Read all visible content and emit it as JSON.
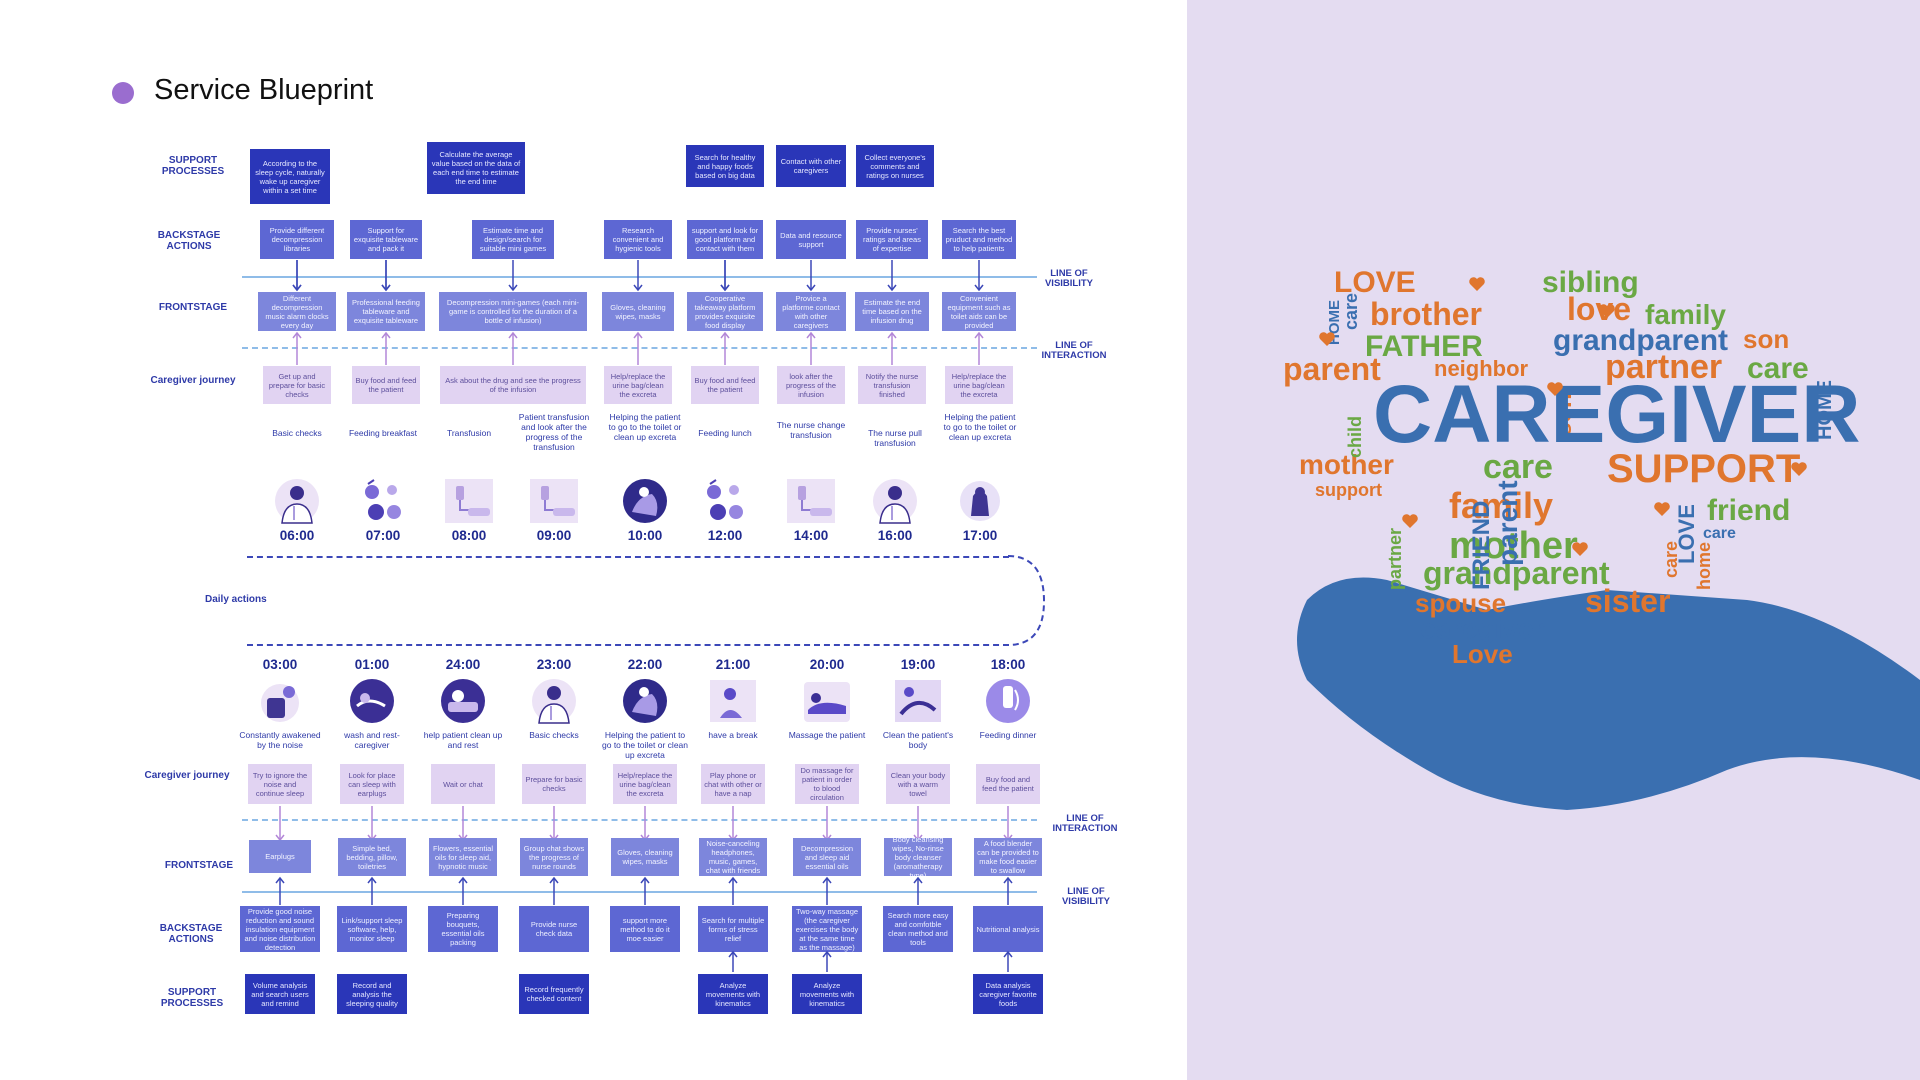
{
  "title": "Service Blueprint",
  "row_labels": {
    "support_processes": "SUPPORT PROCESSES",
    "backstage_actions": "BACKSTAGE ACTIONS",
    "frontstage": "FRONTSTAGE",
    "caregiver_journey": "Caregiver journey",
    "line_of_visibility": "LINE OF VISIBILITY",
    "line_of_interaction": "LINE OF INTERACTION",
    "daily_actions": "Daily actions"
  },
  "top": {
    "support": [
      {
        "col": 0,
        "text": "According to the sleep cycle, naturally wake up caregiver within a set time"
      },
      {
        "col": 2,
        "text": "Calculate the average value based on the data of each end time to estimate the end time"
      },
      {
        "col": 5,
        "text": "Search for healthy and happy foods based on big data"
      },
      {
        "col": 6,
        "text": "Contact with other caregivers"
      },
      {
        "col": 7,
        "text": "Collect everyone's comments and ratings on nurses"
      }
    ],
    "backstage": [
      {
        "col": 0,
        "text": "Provide different decompression libraries"
      },
      {
        "col": 1,
        "text": "Support for exquisite tableware and pack it"
      },
      {
        "col": 2,
        "text": "Estimate time and design/search for suitable mini games"
      },
      {
        "col": 4,
        "text": "Research convenient and hygienic tools"
      },
      {
        "col": 5,
        "text": "support and look for good platform and contact with them"
      },
      {
        "col": 6,
        "text": "Data and resource support"
      },
      {
        "col": 7,
        "text": "Provide nurses' ratings and areas of expertise"
      },
      {
        "col": 8,
        "text": "Search the best pruduct and method to help patients"
      }
    ],
    "frontstage": [
      {
        "col": 0,
        "text": "Different decompression music alarm clocks every day"
      },
      {
        "col": 1,
        "text": "Professional feeding tableware and exquisite tableware"
      },
      {
        "col": 2,
        "text": "Decompression mini-games (each mini-game is controlled for the duration of a bottle of infusion)"
      },
      {
        "col": 4,
        "text": "Gloves, cleaning wipes, masks"
      },
      {
        "col": 5,
        "text": "Cooperative takeaway platform provides exquisite food display"
      },
      {
        "col": 6,
        "text": "Provice a platforme contact with other caregivers"
      },
      {
        "col": 7,
        "text": "Estimate the end time based on the infusion drug"
      },
      {
        "col": 8,
        "text": "Convenient equipment such as toilet aids can be provided"
      }
    ],
    "journey": [
      {
        "col": 0,
        "text": "Get up and prepare for basic checks"
      },
      {
        "col": 1,
        "text": "Buy food and feed the patient"
      },
      {
        "col": 2,
        "text": "Ask about the drug and see the progress of the infusion"
      },
      {
        "col": 4,
        "text": "Help/replace the urine bag/clean the excreta"
      },
      {
        "col": 5,
        "text": "Buy food and feed the patient"
      },
      {
        "col": 6,
        "text": "look after the progress of the infusion"
      },
      {
        "col": 7,
        "text": "Notify the nurse transfusion finished"
      },
      {
        "col": 8,
        "text": "Help/replace the urine bag/clean the excreta"
      }
    ],
    "captions": [
      "Basic checks",
      "Feeding breakfast",
      "Transfusion",
      "Patient transfusion and look after the progress of the transfusion",
      "Helping the patient to go to the toilet or clean up excreta",
      "Feeding lunch",
      "The nurse change transfusion",
      "The nurse pull transfusion",
      "Helping the patient to go to the toilet or clean up excreta"
    ],
    "times": [
      "06:00",
      "07:00",
      "08:00",
      "09:00",
      "10:00",
      "12:00",
      "14:00",
      "16:00",
      "17:00"
    ]
  },
  "bottom": {
    "times": [
      "03:00",
      "01:00",
      "24:00",
      "23:00",
      "22:00",
      "21:00",
      "20:00",
      "19:00",
      "18:00"
    ],
    "captions": [
      "Constantly awakened by the noise",
      "wash and rest-caregiver",
      "help patient clean up and rest",
      "Basic checks",
      "Helping the patient to go to the toilet or clean up excreta",
      "have a break",
      "Massage the patient",
      "Clean the patient's body",
      "Feeding dinner"
    ],
    "journey": [
      "Try to ignore the noise and continue sleep",
      "Look for place can sleep with earplugs",
      "Wait or chat",
      "Prepare for basic checks",
      "Help/replace the urine bag/clean the excreta",
      "Play phone or chat with other or have a nap",
      "Do massage for patient in order to blood circulation",
      "Clean your body with a warm towel",
      "Buy food and feed the patient"
    ],
    "frontstage": [
      "Earplugs",
      "Simple bed, bedding, pillow, toiletries",
      "Flowers, essential oils for sleep aid, hypnotic music",
      "Group chat shows the progress of nurse rounds",
      "Gloves, cleaning wipes, masks",
      "Noise-canceling headphones, music, games, chat with friends",
      "Decompression and sleep aid essential oils",
      "Body cleansing wipes, No-rinse body cleanser (aromatherapy type)",
      "A food blender can be provided to make food easier to swallow"
    ],
    "backstage": [
      "Provide good noise reduction and sound insulation equipment and noise distribution detection",
      "Link/support sleep software, help, monitor sleep",
      "Preparing bouquets, essential oils packing",
      "Provide nurse check data",
      "support more method to do it moe easier",
      "Search for multiple forms of stress relief",
      "Two-way massage (the caregiver exercises the body at the same time as the massage)",
      "Search more easy and comfotble clean method and tools",
      "Nutritional analysis"
    ],
    "support": [
      {
        "col": 0,
        "text": "Volume analysis and search users and remind"
      },
      {
        "col": 1,
        "text": "Record and analysis the sleeping quality"
      },
      {
        "col": 3,
        "text": "Record frequently checked content"
      },
      {
        "col": 5,
        "text": "Analyze movements with kinematics"
      },
      {
        "col": 6,
        "text": "Analyze movements with kinematics"
      },
      {
        "col": 8,
        "text": "Data analysis caregiver favorite foods"
      }
    ]
  },
  "illustrations": [
    "nurse-icon",
    "food-icon",
    "infusion-icon",
    "infusion-icon",
    "bed-icon",
    "food-icon",
    "infusion-icon",
    "nurse-icon",
    "toilet-icon"
  ],
  "illustrations_bottom": [
    "noise-icon",
    "sleep-icon",
    "rest-icon",
    "nurse-icon",
    "bed-icon",
    "break-icon",
    "massage-icon",
    "clean-icon",
    "dinner-icon"
  ],
  "word_cloud": {
    "center": "CAREGIVER",
    "words": [
      "LOVE",
      "brother",
      "sibling",
      "love",
      "family",
      "care",
      "HOME",
      "FATHER",
      "grandparent",
      "son",
      "parent",
      "neighbor",
      "son",
      "partner",
      "care",
      "child",
      "HOME",
      "mother",
      "care",
      "SUPPORT",
      "support",
      "FRIEND",
      "parent",
      "family",
      "friend",
      "care",
      "partner",
      "mother",
      "LOVE",
      "care",
      "home",
      "grandparent",
      "spouse",
      "sister",
      "caregiver",
      "Love"
    ]
  },
  "colors": {
    "support": "#2a36b8",
    "backstage": "#5d67d3",
    "frontstage": "#7d86dc",
    "journey": "#e1d3f2",
    "accent": "#9a6dcf",
    "panel": "#e4dcf1",
    "hand": "#3a6fb0"
  }
}
